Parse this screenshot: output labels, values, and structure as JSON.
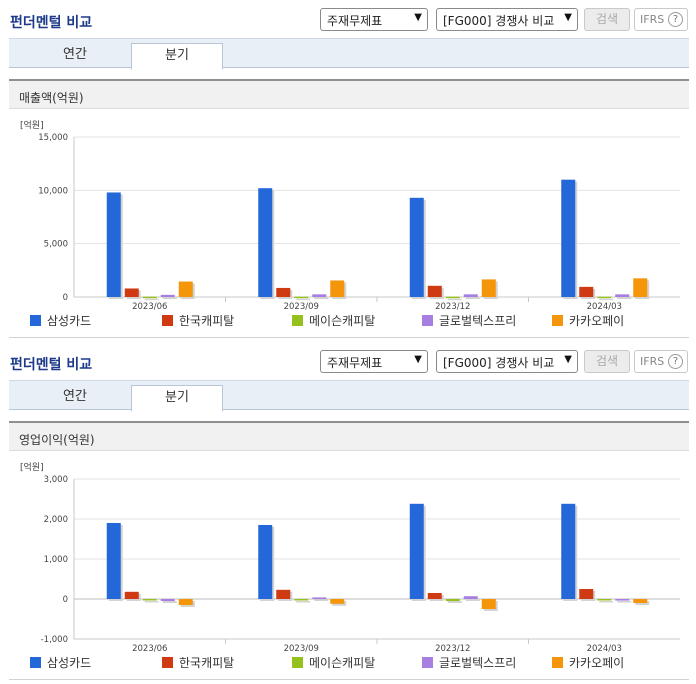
{
  "header": {
    "title": "펀더멘털 비교",
    "select_statement": "주재무제표",
    "select_group": "[FG000] 경쟁사 비교",
    "search_label": "검색",
    "ifrs_label": "IFRS",
    "help_glyph": "?"
  },
  "tabs": [
    {
      "label": "연간",
      "active": false
    },
    {
      "label": "분기",
      "active": true
    }
  ],
  "colors": {
    "title": "#1d3a8a",
    "series": [
      "#2467d8",
      "#cf3a12",
      "#94c11e",
      "#a77fe0",
      "#f4950a"
    ]
  },
  "chart_data": [
    {
      "type": "bar",
      "title": "매출액(억원)",
      "unit": "[억원]",
      "categories": [
        "2023/06",
        "2023/09",
        "2023/12",
        "2024/03"
      ],
      "ylim": [
        0,
        15000
      ],
      "yticks": [
        "15,000",
        "10,000",
        "5,000",
        "0"
      ],
      "ytick_values": [
        15000,
        10000,
        5000,
        0
      ],
      "grid": true,
      "legend_position": "bottom",
      "series": [
        {
          "name": "삼성카드",
          "values": [
            9800,
            10200,
            9300,
            11000
          ]
        },
        {
          "name": "한국캐피탈",
          "values": [
            800,
            850,
            1050,
            950
          ]
        },
        {
          "name": "메이슨캐피탈",
          "values": [
            30,
            30,
            30,
            30
          ]
        },
        {
          "name": "글로벌텍스프리",
          "values": [
            200,
            250,
            250,
            250
          ]
        },
        {
          "name": "카카오페이",
          "values": [
            1450,
            1550,
            1650,
            1750
          ]
        }
      ]
    },
    {
      "type": "bar",
      "title": "영업이익(억원)",
      "unit": "[억원]",
      "categories": [
        "2023/06",
        "2023/09",
        "2023/12",
        "2024/03"
      ],
      "ylim": [
        -1000,
        3000
      ],
      "yticks": [
        "3,000",
        "2,000",
        "1,000",
        "0",
        "-1,000"
      ],
      "ytick_values": [
        3000,
        2000,
        1000,
        0,
        -1000
      ],
      "grid": true,
      "legend_position": "bottom",
      "series": [
        {
          "name": "삼성카드",
          "values": [
            1900,
            1850,
            2380,
            2380
          ]
        },
        {
          "name": "한국캐피탈",
          "values": [
            180,
            230,
            150,
            250
          ]
        },
        {
          "name": "메이슨캐피탈",
          "values": [
            -10,
            -10,
            -50,
            -30
          ]
        },
        {
          "name": "글로벌텍스프리",
          "values": [
            -50,
            40,
            70,
            -40
          ]
        },
        {
          "name": "카카오페이",
          "values": [
            -150,
            -120,
            -250,
            -100
          ]
        }
      ]
    }
  ]
}
